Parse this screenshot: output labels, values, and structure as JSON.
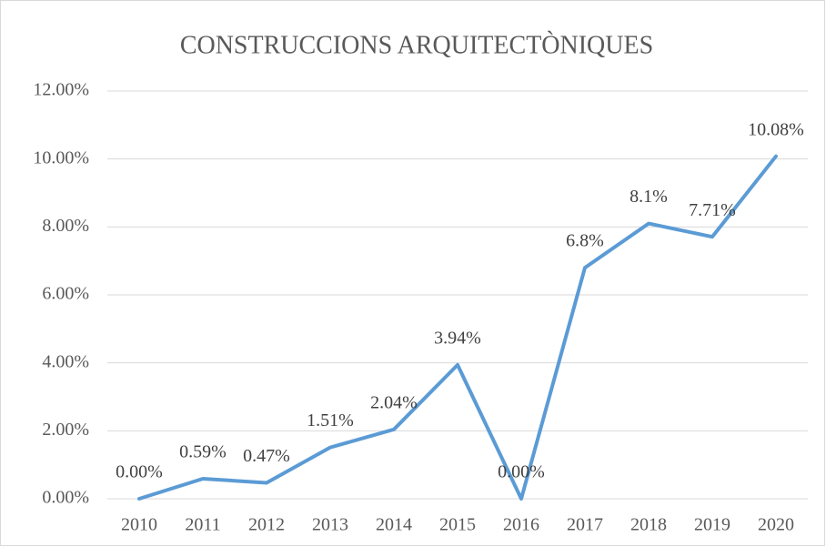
{
  "chart_data": {
    "type": "line",
    "title": "CONSTRUCCIONS ARQUITECTÒNIQUES",
    "categories": [
      "2010",
      "2011",
      "2012",
      "2013",
      "2014",
      "2015",
      "2016",
      "2017",
      "2018",
      "2019",
      "2020"
    ],
    "series": [
      {
        "name": "Construccions arquitectòniques",
        "color": "#5b9bd5",
        "values": [
          0,
          0.59,
          0.47,
          1.51,
          2.04,
          3.94,
          0,
          6.8,
          8.1,
          7.71,
          10.08
        ],
        "value_labels": [
          "0.00%",
          "0.59%",
          "0.47%",
          "1.51%",
          "2.04%",
          "3.94%",
          "0.00%",
          "6.8%",
          "8.1%",
          "7.71%",
          "10.08%"
        ]
      }
    ],
    "ylim": [
      0,
      12
    ],
    "yticks": [
      {
        "value": 0,
        "label": "0.00%"
      },
      {
        "value": 2,
        "label": "2.00%"
      },
      {
        "value": 4,
        "label": "4.00%"
      },
      {
        "value": 6,
        "label": "6.00%"
      },
      {
        "value": 8,
        "label": "8.00%"
      },
      {
        "value": 10,
        "label": "10.00%"
      },
      {
        "value": 12,
        "label": "12.00%"
      }
    ],
    "grid": true
  }
}
